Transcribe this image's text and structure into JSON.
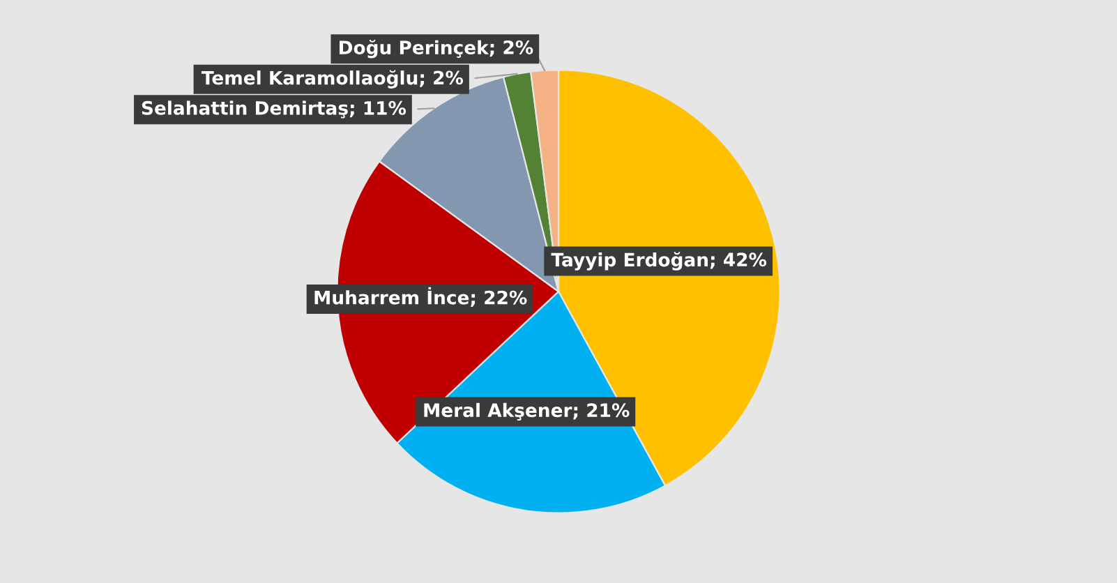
{
  "chart_data": {
    "type": "pie",
    "categories": [
      "Tayyip Erdoğan",
      "Meral Akşener",
      "Muharrem İnce",
      "Selahattin Demirtaş",
      "Temel Karamollaoğlu",
      "Doğu Perinçek"
    ],
    "values": [
      42,
      21,
      22,
      11,
      2,
      2
    ],
    "colors": [
      "#ffc000",
      "#00b0f0",
      "#c00000",
      "#8497b0",
      "#548235",
      "#f4b183"
    ],
    "value_labels": [
      "; 42%",
      "; 21%",
      "; 22%",
      "; 11%",
      "; 2%",
      "; 2%"
    ],
    "legend": false
  }
}
